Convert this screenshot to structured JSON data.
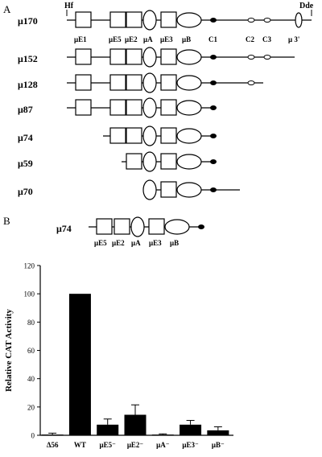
{
  "panel_a": {
    "label": "A",
    "end_labels": {
      "left": "Hf",
      "right": "Dde"
    },
    "rows": [
      {
        "name": "μ170"
      },
      {
        "name": "μ152"
      },
      {
        "name": "μ128"
      },
      {
        "name": "μ87"
      },
      {
        "name": "μ74"
      },
      {
        "name": "μ59"
      },
      {
        "name": "μ70"
      }
    ],
    "element_labels": {
      "uE1": "μE1",
      "uE5": "μE5",
      "uE2": "μE2",
      "uA": "μA",
      "uE3": "μE3",
      "uB": "μB",
      "C1": "C1",
      "C2": "C2",
      "C3": "C3",
      "u3": "μ 3'"
    }
  },
  "panel_b": {
    "label": "B",
    "construct_name": "μ74",
    "element_labels": {
      "uE5": "μE5",
      "uE2": "μE2",
      "uA": "μA",
      "uE3": "μE3",
      "uB": "μB"
    }
  },
  "chart_data": {
    "type": "bar",
    "categories": [
      "Δ56",
      "WT",
      "μE5⁻",
      "μE2⁻",
      "μA⁻",
      "μE3⁻",
      "μB⁻"
    ],
    "values": [
      0.5,
      100,
      7.5,
      14.5,
      0.5,
      7.5,
      3.5
    ],
    "errors": [
      1,
      0,
      4,
      7,
      0.5,
      3,
      2.5
    ],
    "ylabel": "Relative CAT Activity",
    "ylim": [
      0,
      120
    ],
    "yticks": [
      0,
      20,
      40,
      60,
      80,
      100,
      120
    ],
    "bar_color": "#000000"
  }
}
